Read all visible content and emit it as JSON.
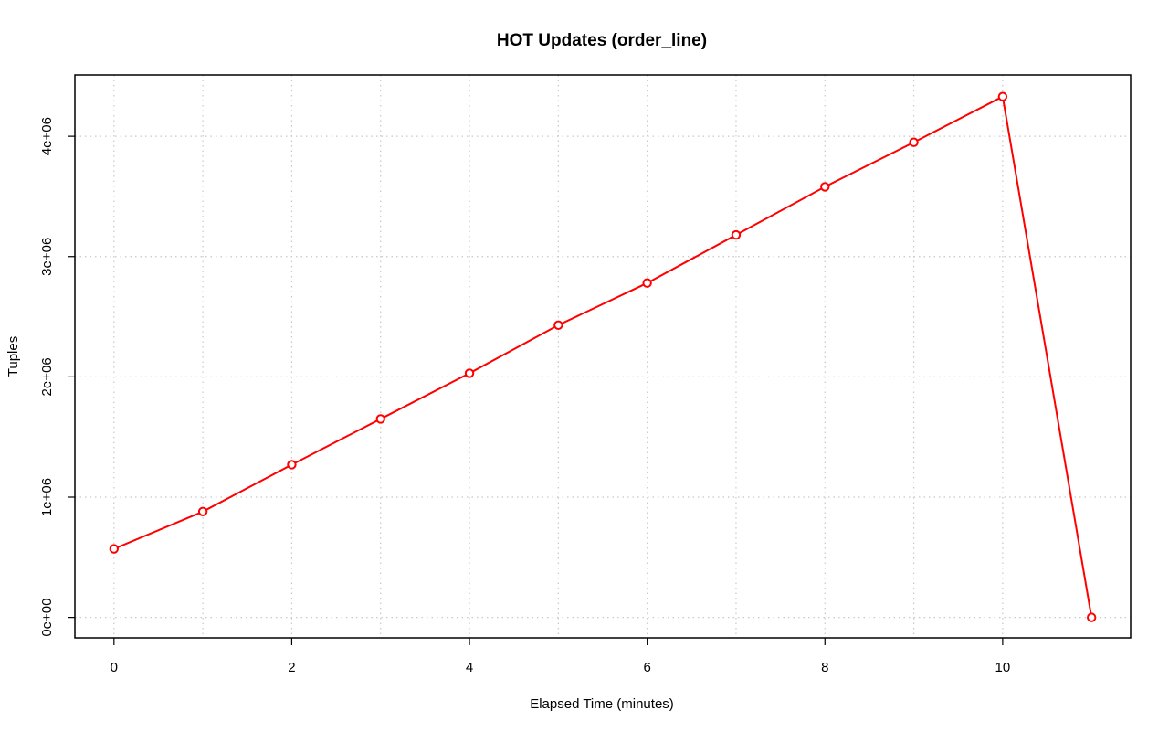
{
  "chart_data": {
    "type": "line",
    "title": "HOT Updates (order_line)",
    "xlabel": "Elapsed Time (minutes)",
    "ylabel": "Tuples",
    "xlim": [
      -0.44,
      11.44
    ],
    "ylim": [
      -170000,
      4510000
    ],
    "grid": true,
    "x_ticks": [
      0,
      2,
      4,
      6,
      8,
      10
    ],
    "x_tick_labels": [
      "0",
      "2",
      "4",
      "6",
      "8",
      "10"
    ],
    "y_ticks": [
      0,
      1000000,
      2000000,
      3000000,
      4000000
    ],
    "y_tick_labels": [
      "0e+00",
      "1e+06",
      "2e+06",
      "3e+06",
      "4e+06"
    ],
    "series": [
      {
        "color": "#ff0000",
        "marker": "open-circle",
        "x": [
          0,
          1,
          2,
          3,
          4,
          5,
          6,
          7,
          8,
          9,
          10,
          11
        ],
        "values": [
          570000,
          880000,
          1270000,
          1650000,
          2030000,
          2430000,
          2780000,
          3180000,
          3580000,
          3950000,
          4330000,
          0
        ]
      }
    ]
  }
}
